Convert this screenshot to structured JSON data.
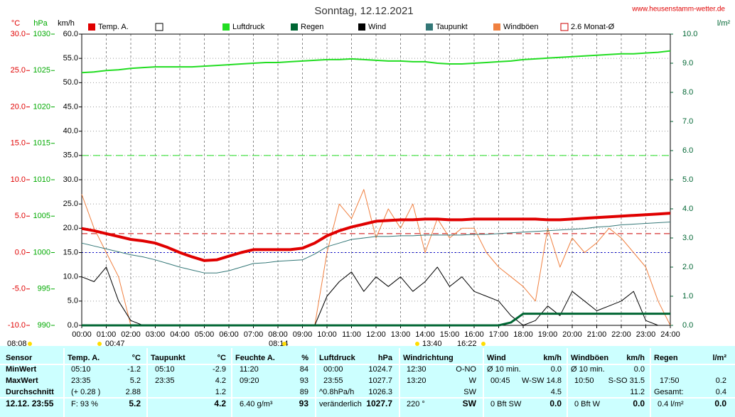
{
  "chart_data": {
    "type": "line",
    "title": "Sonntag, 12.12.2021",
    "source": "www.heusenstamm-wetter.de",
    "axis_labels": {
      "y": "°C",
      "y2": "hPa",
      "y3": "km/h",
      "y4": "l/m²"
    },
    "x": [
      0,
      0.5,
      1,
      1.5,
      2,
      2.5,
      3,
      3.5,
      4,
      4.5,
      5,
      5.5,
      6,
      6.5,
      7,
      7.5,
      8,
      8.5,
      9,
      9.5,
      10,
      10.5,
      11,
      11.5,
      12,
      12.5,
      13,
      13.5,
      14,
      14.5,
      15,
      15.5,
      16,
      16.5,
      17,
      17.5,
      18,
      18.5,
      19,
      19.5,
      20,
      20.5,
      21,
      21.5,
      22,
      22.5,
      23,
      23.5,
      24
    ],
    "xlim": [
      0,
      24
    ],
    "xticks": [
      {
        "value": 0,
        "label": "00:00"
      },
      {
        "value": 1,
        "label": "01:00"
      },
      {
        "value": 2,
        "label": "02:00"
      },
      {
        "value": 3,
        "label": "03:00"
      },
      {
        "value": 4,
        "label": "04:00"
      },
      {
        "value": 5,
        "label": "05:00"
      },
      {
        "value": 6,
        "label": "06:00"
      },
      {
        "value": 7,
        "label": "07:00"
      },
      {
        "value": 8,
        "label": "08:00"
      },
      {
        "value": 9,
        "label": "09:00"
      },
      {
        "value": 10,
        "label": "10:00"
      },
      {
        "value": 11,
        "label": "11:00"
      },
      {
        "value": 12,
        "label": "12:00"
      },
      {
        "value": 13,
        "label": "13:00"
      },
      {
        "value": 14,
        "label": "14:00"
      },
      {
        "value": 15,
        "label": "15:00"
      },
      {
        "value": 16,
        "label": "16:00"
      },
      {
        "value": 17,
        "label": "17:00"
      },
      {
        "value": 18,
        "label": "18:00"
      },
      {
        "value": 19,
        "label": "19:00"
      },
      {
        "value": 20,
        "label": "20:00"
      },
      {
        "value": 21,
        "label": "21:00"
      },
      {
        "value": 22,
        "label": "22:00"
      },
      {
        "value": 23,
        "label": "23:00"
      },
      {
        "value": 24,
        "label": "24:00"
      }
    ],
    "ylim": [
      -10,
      30
    ],
    "yticks": [
      {
        "value": -10,
        "label": "-10.0"
      },
      {
        "value": -5,
        "label": "-5.0"
      },
      {
        "value": 0,
        "label": "0.0"
      },
      {
        "value": 5,
        "label": "5.0"
      },
      {
        "value": 10,
        "label": "10.0"
      },
      {
        "value": 15,
        "label": "15.0"
      },
      {
        "value": 20,
        "label": "20.0"
      },
      {
        "value": 25,
        "label": "25.0"
      },
      {
        "value": 30,
        "label": "30.0"
      }
    ],
    "y2lim": [
      990,
      1030
    ],
    "y2ticks": [
      990,
      995,
      1000,
      1005,
      1010,
      1015,
      1020,
      1025,
      1030
    ],
    "y3lim": [
      0,
      60
    ],
    "y3ticks": [
      {
        "value": 0,
        "label": "0.0"
      },
      {
        "value": 5,
        "label": "5.0"
      },
      {
        "value": 10,
        "label": "10.0"
      },
      {
        "value": 15,
        "label": "15.0"
      },
      {
        "value": 20,
        "label": "20.0"
      },
      {
        "value": 25,
        "label": "25.0"
      },
      {
        "value": 30,
        "label": "30.0"
      },
      {
        "value": 35,
        "label": "35.0"
      },
      {
        "value": 40,
        "label": "40.0"
      },
      {
        "value": 45,
        "label": "45.0"
      },
      {
        "value": 50,
        "label": "50.0"
      },
      {
        "value": 55,
        "label": "55.0"
      },
      {
        "value": 60,
        "label": "60.0"
      }
    ],
    "y4lim": [
      0,
      10
    ],
    "y4ticks": [
      {
        "value": 0,
        "label": "0.0"
      },
      {
        "value": 1,
        "label": "1.0"
      },
      {
        "value": 2,
        "label": "2.0"
      },
      {
        "value": 3,
        "label": "3.0"
      },
      {
        "value": 4,
        "label": "4.0"
      },
      {
        "value": 5,
        "label": "5.0"
      },
      {
        "value": 6,
        "label": "6.0"
      },
      {
        "value": 7,
        "label": "7.0"
      },
      {
        "value": 8,
        "label": "8.0"
      },
      {
        "value": 9,
        "label": "9.0"
      },
      {
        "value": 10,
        "label": "10.0"
      }
    ],
    "grid": true,
    "series": [
      {
        "name": "Temp. A.",
        "color": "#e00000",
        "axis": "y",
        "width": 4,
        "values": [
          3.3,
          3.0,
          2.6,
          2.2,
          1.8,
          1.6,
          1.3,
          0.7,
          0.0,
          -0.6,
          -1.1,
          -1.0,
          -0.5,
          0.0,
          0.4,
          0.4,
          0.4,
          0.4,
          0.6,
          1.3,
          2.3,
          3.0,
          3.5,
          3.9,
          4.3,
          4.4,
          4.5,
          4.5,
          4.6,
          4.6,
          4.5,
          4.5,
          4.6,
          4.6,
          4.6,
          4.6,
          4.6,
          4.6,
          4.5,
          4.5,
          4.6,
          4.7,
          4.8,
          4.9,
          5.0,
          5.1,
          5.2,
          5.3,
          5.4
        ]
      },
      {
        "name": "Luftdruck",
        "color": "#22dd22",
        "axis": "y2",
        "width": 2,
        "values": [
          1024.7,
          1024.8,
          1025.0,
          1025.1,
          1025.3,
          1025.4,
          1025.5,
          1025.5,
          1025.5,
          1025.5,
          1025.6,
          1025.7,
          1025.8,
          1025.9,
          1026.0,
          1026.1,
          1026.1,
          1026.2,
          1026.3,
          1026.4,
          1026.5,
          1026.5,
          1026.6,
          1026.5,
          1026.4,
          1026.3,
          1026.3,
          1026.2,
          1026.2,
          1026.0,
          1025.9,
          1025.9,
          1026.0,
          1026.1,
          1026.2,
          1026.3,
          1026.5,
          1026.6,
          1026.7,
          1026.8,
          1026.9,
          1027.0,
          1027.1,
          1027.2,
          1027.3,
          1027.3,
          1027.4,
          1027.5,
          1027.7
        ]
      },
      {
        "name": "Regen",
        "color": "#006633",
        "axis": "y4",
        "width": 3,
        "values": [
          0,
          0,
          0,
          0,
          0,
          0,
          0,
          0,
          0,
          0,
          0,
          0,
          0,
          0,
          0,
          0,
          0,
          0,
          0,
          0,
          0,
          0,
          0,
          0,
          0,
          0,
          0,
          0,
          0,
          0,
          0,
          0,
          0,
          0,
          0,
          0.1,
          0.4,
          0.4,
          0.4,
          0.4,
          0.4,
          0.4,
          0.4,
          0.4,
          0.4,
          0.4,
          0.4,
          0.4,
          0.4
        ]
      },
      {
        "name": "Wind",
        "color": "#000000",
        "axis": "y3",
        "width": 1,
        "values": [
          10,
          9,
          12,
          5,
          1,
          0,
          0,
          0,
          0,
          0,
          0,
          0,
          0,
          0,
          0,
          0,
          0,
          0,
          0,
          0,
          6,
          9,
          11,
          7,
          10,
          8,
          10,
          7,
          9,
          12,
          8,
          10,
          7,
          6,
          5,
          2,
          0,
          1,
          4,
          2,
          7,
          5,
          3,
          4,
          5,
          7,
          1,
          0,
          0
        ]
      },
      {
        "name": "Taupunkt",
        "color": "#337777",
        "axis": "y",
        "width": 1,
        "values": [
          1.3,
          0.9,
          0.5,
          0.1,
          -0.3,
          -0.6,
          -1.0,
          -1.5,
          -2.0,
          -2.4,
          -2.8,
          -2.8,
          -2.5,
          -2.0,
          -1.5,
          -1.4,
          -1.2,
          -1.1,
          -1.0,
          -0.2,
          0.8,
          1.3,
          1.8,
          2.0,
          2.2,
          2.2,
          2.3,
          2.3,
          2.4,
          2.4,
          2.4,
          2.4,
          2.5,
          2.5,
          2.6,
          2.7,
          2.8,
          2.9,
          3.0,
          3.1,
          3.2,
          3.3,
          3.5,
          3.6,
          3.8,
          3.9,
          4.0,
          4.1,
          4.2
        ]
      },
      {
        "name": "Windböen",
        "color": "#f08040",
        "axis": "y3",
        "width": 1,
        "values": [
          27,
          20,
          15,
          10,
          0,
          0,
          0,
          0,
          0,
          0,
          0,
          0,
          0,
          0,
          0,
          0,
          0,
          0,
          0,
          0,
          15,
          25,
          22,
          28,
          18,
          24,
          20,
          25,
          15,
          22,
          18,
          20,
          20,
          15,
          12,
          10,
          8,
          5,
          20,
          12,
          18,
          15,
          17,
          20,
          18,
          15,
          12,
          5,
          0
        ]
      }
    ],
    "reference": {
      "name": "2.6 Monat-Ø",
      "value": 2.6,
      "color": "#cc0000",
      "axis": "y"
    },
    "annotations": [
      "08:08",
      "00:47",
      "08:14",
      "13:40",
      "16:22"
    ]
  },
  "table": {
    "header": [
      "Sensor",
      "Temp. A.",
      "°C",
      "Taupunkt",
      "°C",
      "Feuchte A.",
      "%",
      "Luftdruck",
      "hPa",
      "Windrichtung",
      "Wind",
      "km/h",
      "Windböen",
      "km/h",
      "Regen",
      "l/m²"
    ],
    "rows": [
      {
        "label": "MinWert",
        "cells": [
          "05:10",
          "-1.2",
          "05:10",
          "-2.9",
          "11:20",
          "84",
          "00:00",
          "1024.7",
          "12:30",
          "O-NO",
          "Ø 10 min.",
          "0.0",
          "Ø 10 min.",
          "0.0"
        ]
      },
      {
        "label": "MaxWert",
        "cells": [
          "23:35",
          "5.2",
          "23:35",
          "4.2",
          "09:20",
          "93",
          "23:55",
          "1027.7",
          "13:20",
          "W",
          "00:45",
          "W-SW 14.8",
          "10:50",
          "S-SO 31.5",
          "17:50",
          "0.2"
        ]
      },
      {
        "label": "Durchschnitt",
        "cells": [
          "(+ 0.28 )",
          "2.88",
          "1.2",
          "89",
          "^0.8hPa/h",
          "1026.3",
          "SW",
          "4.5",
          "11.2",
          "Gesamt:",
          "0.4"
        ]
      },
      {
        "label": "12.12. 23:55",
        "cells": [
          "F: 93 %",
          "5.2",
          "4.2",
          "6.40 g/m³",
          "93",
          "veränderlich",
          "1027.7",
          "220 °",
          "SW",
          "0 Bft SW",
          "0.0",
          "0 Bft W",
          "0.0",
          "0.4 l/m²",
          "0.0"
        ]
      }
    ]
  }
}
